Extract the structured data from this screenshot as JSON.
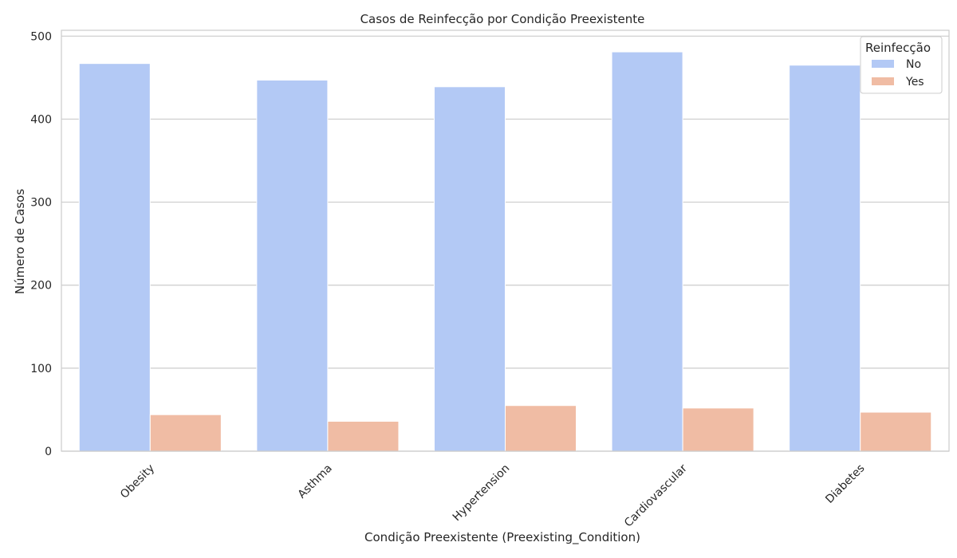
{
  "chart_data": {
    "type": "bar",
    "title": "Casos de Reinfecção por Condição Preexistente",
    "xlabel": "Condição Preexistente (Preexisting_Condition)",
    "ylabel": "Número de Casos",
    "categories": [
      "Obesity",
      "Asthma",
      "Hypertension",
      "Cardiovascular",
      "Diabetes"
    ],
    "series": [
      {
        "name": "No",
        "color": "#b3c9f5",
        "values": [
          467,
          447,
          439,
          481,
          465
        ]
      },
      {
        "name": "Yes",
        "color": "#f0bca4",
        "values": [
          44,
          36,
          55,
          52,
          47
        ]
      }
    ],
    "ylim": [
      0,
      507
    ],
    "yticks": [
      0,
      100,
      200,
      300,
      400,
      500
    ],
    "grid": true,
    "legend": {
      "title": "Reinfecção",
      "placement": "top-right"
    }
  }
}
